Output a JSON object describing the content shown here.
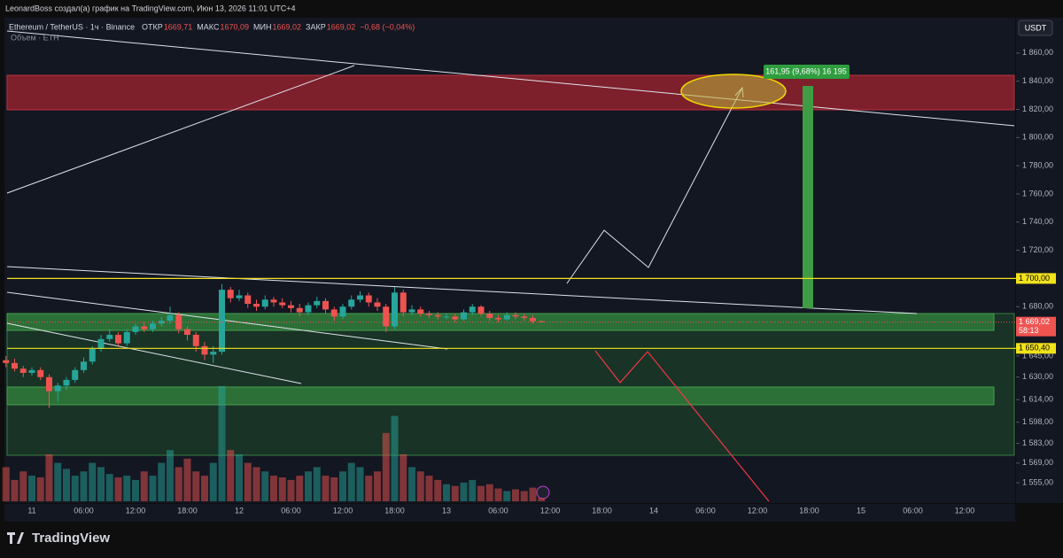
{
  "header": {
    "author_line": "LeonardBoss создал(а) график на TradingView.com, Июн 13, 2026 11:01 UTC+4",
    "brand": "TradingView",
    "currency_button": "USDT"
  },
  "chart_data": {
    "type": "candlestick",
    "symbol": "Ethereum / TetherUS · 1ч · Binance",
    "legend": [
      {
        "key": "ОТКР",
        "label": "1669,71"
      },
      {
        "key": "МАКС",
        "label": "1670,09"
      },
      {
        "key": "МИН",
        "label": "1669,02"
      },
      {
        "key": "ЗАКР",
        "label": "1669,02"
      }
    ],
    "change": "−0,68 (−0,04%)",
    "volume_label": "Объем · ETH",
    "open": [
      1642,
      1640,
      1636,
      1633,
      1635,
      1630,
      1620,
      1624,
      1628,
      1635,
      1641,
      1650,
      1657,
      1660,
      1654,
      1662,
      1666,
      1664,
      1668,
      1670,
      1674,
      1664,
      1660,
      1652,
      1646,
      1648,
      1692,
      1686,
      1688,
      1682,
      1680,
      1685,
      1683,
      1681,
      1679,
      1676,
      1681,
      1684,
      1678,
      1673,
      1680,
      1685,
      1688,
      1683,
      1680,
      1666,
      1690,
      1676,
      1678,
      1675,
      1674,
      1673,
      1673,
      1671,
      1676,
      1680,
      1675,
      1672,
      1671,
      1674,
      1673,
      1672,
      1669.71
    ],
    "high": [
      1645,
      1643,
      1638,
      1637,
      1637,
      1632,
      1626,
      1630,
      1637,
      1644,
      1652,
      1660,
      1664,
      1662,
      1664,
      1668,
      1669,
      1670,
      1673,
      1680,
      1676,
      1666,
      1662,
      1655,
      1652,
      1696,
      1694,
      1692,
      1690,
      1685,
      1688,
      1687,
      1686,
      1684,
      1682,
      1683,
      1687,
      1686,
      1680,
      1682,
      1688,
      1691,
      1690,
      1686,
      1682,
      1694,
      1692,
      1681,
      1680,
      1677,
      1676,
      1675,
      1675,
      1678,
      1682,
      1681,
      1677,
      1674,
      1676,
      1676,
      1675,
      1674,
      1670.09
    ],
    "low": [
      1637,
      1634,
      1630,
      1631,
      1628,
      1608,
      1612,
      1621,
      1626,
      1633,
      1639,
      1648,
      1655,
      1652,
      1652,
      1660,
      1662,
      1662,
      1666,
      1668,
      1661,
      1656,
      1648,
      1642,
      1640,
      1646,
      1683,
      1684,
      1679,
      1677,
      1678,
      1680,
      1679,
      1676,
      1673,
      1674,
      1679,
      1675,
      1670,
      1671,
      1678,
      1683,
      1680,
      1677,
      1662,
      1664,
      1673,
      1674,
      1673,
      1672,
      1671,
      1671,
      1669,
      1670,
      1674,
      1673,
      1670,
      1669,
      1670,
      1671,
      1670,
      1668,
      1669.02
    ],
    "close": [
      1640,
      1636,
      1633,
      1635,
      1630,
      1620,
      1624,
      1628,
      1635,
      1641,
      1650,
      1657,
      1660,
      1654,
      1662,
      1666,
      1664,
      1668,
      1670,
      1674,
      1664,
      1660,
      1652,
      1646,
      1648,
      1692,
      1686,
      1688,
      1682,
      1680,
      1685,
      1683,
      1681,
      1679,
      1676,
      1681,
      1684,
      1678,
      1673,
      1680,
      1685,
      1688,
      1683,
      1680,
      1666,
      1690,
      1676,
      1678,
      1675,
      1674,
      1673,
      1673,
      1671,
      1676,
      1680,
      1675,
      1672,
      1671,
      1674,
      1673,
      1672,
      1669.7,
      1669.02
    ],
    "volume": [
      40,
      25,
      35,
      30,
      28,
      55,
      45,
      38,
      30,
      35,
      45,
      40,
      32,
      28,
      30,
      25,
      35,
      30,
      45,
      60,
      40,
      50,
      35,
      30,
      45,
      135,
      60,
      55,
      45,
      40,
      35,
      30,
      28,
      25,
      30,
      35,
      40,
      30,
      28,
      35,
      45,
      40,
      30,
      35,
      80,
      100,
      55,
      40,
      35,
      30,
      25,
      20,
      18,
      22,
      25,
      18,
      20,
      15,
      12,
      14,
      12,
      16,
      4
    ],
    "vlim": [
      0,
      140
    ],
    "ylim": [
      1545,
      1875
    ],
    "yticks": [
      {
        "value": 1555,
        "label": "1 555,00"
      },
      {
        "value": 1569,
        "label": "1 569,00"
      },
      {
        "value": 1583,
        "label": "1 583,00"
      },
      {
        "value": 1598,
        "label": "1 598,00"
      },
      {
        "value": 1614,
        "label": "1 614,00"
      },
      {
        "value": 1630,
        "label": "1 630,00"
      },
      {
        "value": 1645,
        "label": "1 645,00"
      },
      {
        "value": 1680,
        "label": "1 680,00"
      },
      {
        "value": 1720,
        "label": "1 720,00"
      },
      {
        "value": 1740,
        "label": "1 740,00"
      },
      {
        "value": 1760,
        "label": "1 760,00"
      },
      {
        "value": 1780,
        "label": "1 780,00"
      },
      {
        "value": 1800,
        "label": "1 800,00"
      },
      {
        "value": 1820,
        "label": "1 820,00"
      },
      {
        "value": 1840,
        "label": "1 840,00"
      },
      {
        "value": 1860,
        "label": "1 860,00"
      }
    ],
    "xticks": [
      "11",
      "06:00",
      "12:00",
      "18:00",
      "12",
      "06:00",
      "12:00",
      "18:00",
      "13",
      "06:00",
      "12:00",
      "18:00",
      "14",
      "06:00",
      "12:00",
      "18:00",
      "15",
      "06:00",
      "12:00"
    ],
    "price_lines": [
      {
        "value": 1700,
        "label": "1 700,00",
        "color": "#f2e21a"
      },
      {
        "value": 1650.4,
        "label": "1 650,40",
        "color": "#f2e21a"
      }
    ],
    "last_price_label": "1 669,02",
    "countdown": "58:13",
    "position_label": "161,95 (9,68%) 16 195",
    "up_color": "#26a69a",
    "down_color": "#ef5350"
  }
}
